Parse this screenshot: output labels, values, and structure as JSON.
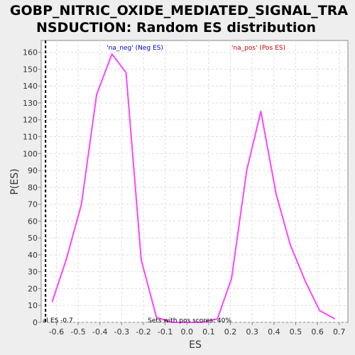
{
  "chart_data": {
    "type": "line",
    "title_line1": "GOBP_NITRIC_OXIDE_MEDIATED_SIGNAL_TRA",
    "title_line2": "NSDUCTION: Random ES distribution",
    "xlabel": "ES",
    "ylabel": "P(ES)",
    "xlim": [
      -0.67,
      0.74
    ],
    "ylim": [
      0,
      167
    ],
    "grid": true,
    "x_ticks": [
      -0.6,
      -0.5,
      -0.4,
      -0.3,
      -0.2,
      -0.1,
      0.0,
      0.1,
      0.2,
      0.3,
      0.4,
      0.5,
      0.6,
      0.7
    ],
    "x_tick_labels": [
      "-0.6",
      "-0.5",
      "-0.4",
      "-0.3",
      "-0.2",
      "-0.1",
      "0.0",
      "0.1",
      "0.2",
      "0.3",
      "0.4",
      "0.5",
      "0.6",
      "0.7"
    ],
    "y_ticks": [
      0,
      10,
      20,
      30,
      40,
      50,
      60,
      70,
      80,
      90,
      100,
      110,
      120,
      130,
      140,
      150,
      160
    ],
    "y_tick_labels": [
      "0",
      "10",
      "20",
      "30",
      "40",
      "50",
      "60",
      "70",
      "80",
      "90",
      "100",
      "110",
      "120",
      "130",
      "140",
      "150",
      "160"
    ],
    "series": [
      {
        "name": "Random ES",
        "color": "#ff44ff",
        "x": [
          -0.62,
          -0.555,
          -0.485,
          -0.415,
          -0.345,
          -0.28,
          -0.21,
          -0.14,
          -0.07,
          0.0,
          0.07,
          0.14,
          0.205,
          0.275,
          0.34,
          0.41,
          0.475,
          0.545,
          0.61,
          0.68
        ],
        "y": [
          12,
          37,
          70,
          135,
          159,
          148,
          37,
          3,
          0,
          0,
          0,
          2,
          26,
          90,
          125,
          76,
          46,
          24,
          7,
          2
        ]
      }
    ],
    "vline": {
      "x": -0.65,
      "color": "#000000",
      "style": "dashed"
    },
    "annotations": {
      "neg_label": "'na_neg' (Neg ES)",
      "neg_color": "#0000cc",
      "pos_label": "'na_pos' (Pos ES)",
      "pos_color": "#cc0000",
      "actual_es_label": "al ES -0.7",
      "pos_scores_label": "Sets with pos scores: 40%"
    }
  }
}
